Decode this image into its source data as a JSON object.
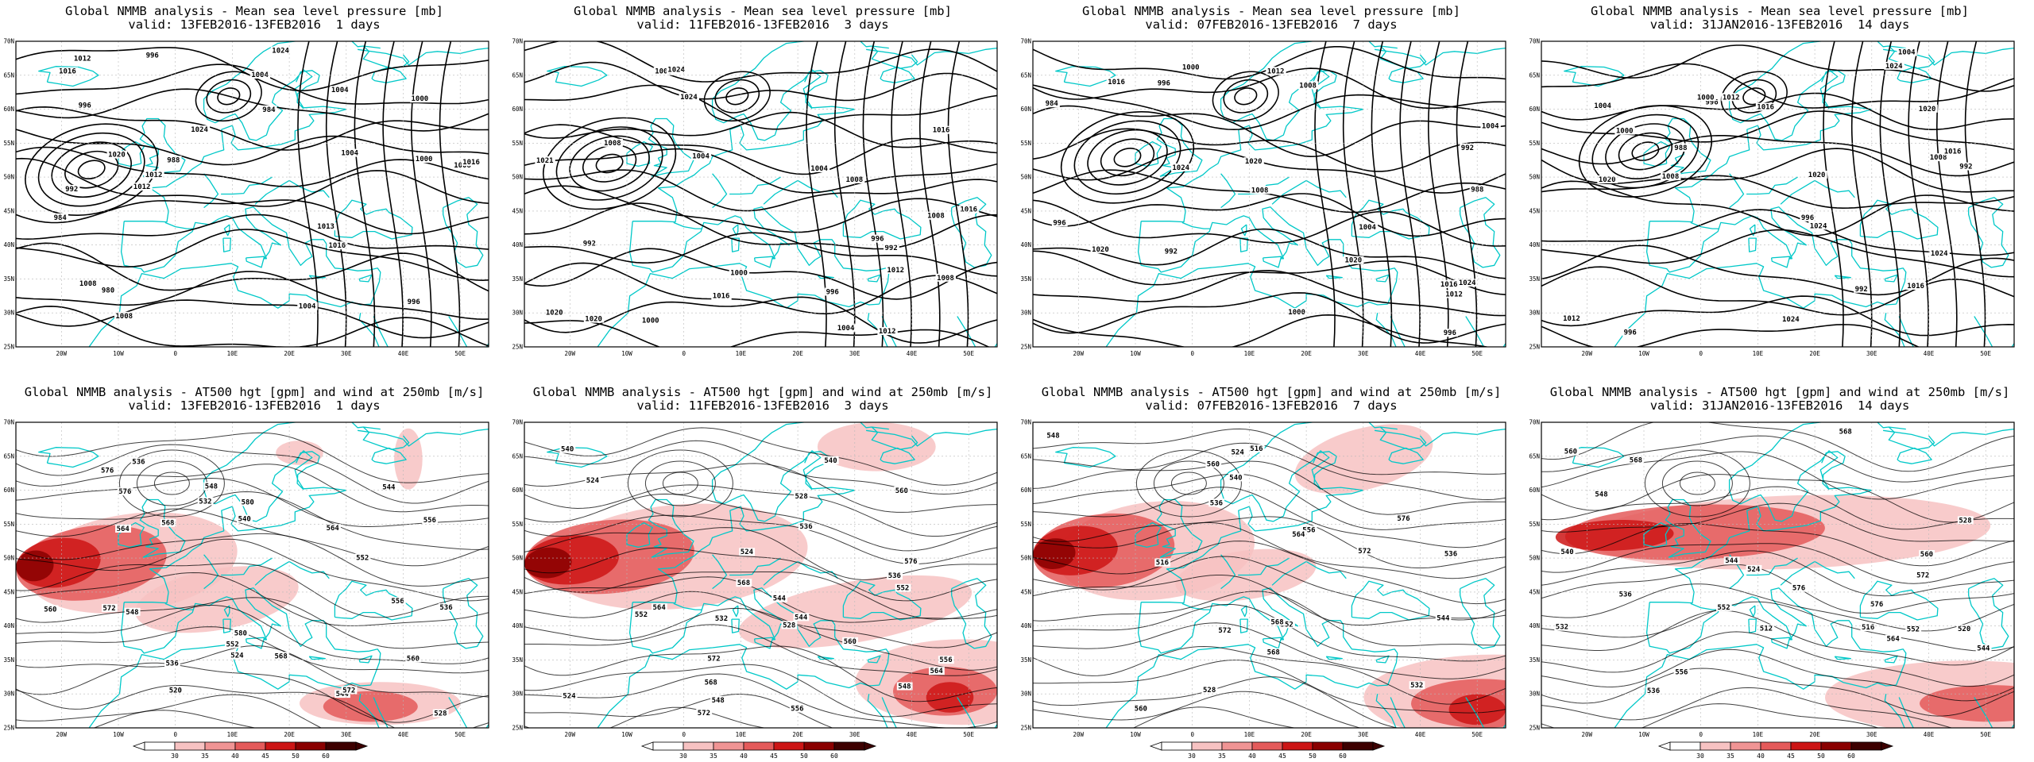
{
  "colors": {
    "background": "#ffffff",
    "coastline": "#00c8c8",
    "isobar": "#000000",
    "shading": [
      "#ffffff",
      "#f7c2c2",
      "#f09494",
      "#e45a5a",
      "#cc1515",
      "#8a0000",
      "#3d0000"
    ]
  },
  "axes": {
    "lat_labels": [
      "70N",
      "65N",
      "60N",
      "55N",
      "50N",
      "45N",
      "40N",
      "35N",
      "30N",
      "25N"
    ],
    "lon_labels": [
      "20W",
      "10W",
      "0",
      "10E",
      "20E",
      "30E",
      "40E",
      "50E"
    ]
  },
  "colorbar": {
    "ticks": [
      "30",
      "35",
      "40",
      "45",
      "50",
      "60"
    ]
  },
  "rows": [
    {
      "title": "Global NMMB analysis - Mean sea level pressure [mb]",
      "kind": "mslp",
      "panels": [
        {
          "valid": "valid: 13FEB2016-13FEB2016  1 days",
          "labels": [
            "1012",
            "1008",
            "1004",
            "1000",
            "1000",
            "1004",
            "996",
            "984",
            "980",
            "984",
            "988",
            "992",
            "996",
            "1004",
            "1012",
            "1016",
            "1013",
            "1008",
            "996",
            "1004",
            "1008",
            "1012",
            "1016",
            "1020",
            "1024",
            "1024",
            "1016"
          ]
        },
        {
          "valid": "valid: 11FEB2016-13FEB2016  3 days",
          "labels": [
            "1000",
            "996",
            "1004",
            "1008",
            "1000",
            "992",
            "992",
            "996",
            "1000",
            "1004",
            "1008",
            "1012",
            "1004",
            "1008",
            "1008",
            "1012",
            "1016",
            "1016",
            "1020",
            "1021",
            "1024",
            "1020",
            "1024",
            "1016"
          ]
        },
        {
          "valid": "valid: 07FEB2016-13FEB2016  7 days",
          "labels": [
            "992",
            "1000",
            "996",
            "996",
            "984",
            "988",
            "992",
            "996",
            "1000",
            "1004",
            "1004",
            "1008",
            "1012",
            "1016",
            "1008",
            "1012",
            "1016",
            "1020",
            "1020",
            "1024",
            "1020",
            "1024"
          ]
        },
        {
          "valid": "valid: 31JAN2016-13FEB2016  14 days",
          "labels": [
            "988",
            "996",
            "992",
            "992",
            "996",
            "1000",
            "1004",
            "1008",
            "1012",
            "1016",
            "1020",
            "996",
            "1000",
            "1004",
            "1008",
            "1012",
            "1016",
            "1016",
            "1020",
            "1020",
            "1024",
            "1024",
            "1024",
            "1024"
          ]
        }
      ]
    },
    {
      "title": "Global NMMB analysis - AT500 hgt [gpm] and wind at 250mb [m/s]",
      "kind": "z500",
      "panels": [
        {
          "valid": "valid: 13FEB2016-13FEB2016  1 days",
          "labels": [
            "524",
            "520",
            "528",
            "532",
            "536",
            "540",
            "544",
            "548",
            "552",
            "556",
            "560",
            "564",
            "568",
            "572",
            "576",
            "580",
            "536",
            "544",
            "548",
            "536",
            "552",
            "556",
            "560",
            "564",
            "568",
            "572",
            "576",
            "580"
          ]
        },
        {
          "valid": "valid: 11FEB2016-13FEB2016  3 days",
          "labels": [
            "524",
            "524",
            "528",
            "532",
            "536",
            "540",
            "544",
            "548",
            "552",
            "556",
            "560",
            "564",
            "568",
            "572",
            "576",
            "536",
            "540",
            "544",
            "548",
            "552",
            "556",
            "560",
            "564",
            "568",
            "572",
            "524",
            "528"
          ]
        },
        {
          "valid": "valid: 07FEB2016-13FEB2016  7 days",
          "labels": [
            "516",
            "536",
            "516",
            "524",
            "528",
            "532",
            "536",
            "540",
            "544",
            "548",
            "552",
            "556",
            "560",
            "564",
            "568",
            "572",
            "576",
            "560",
            "572",
            "568"
          ]
        },
        {
          "valid": "valid: 31JAN2016-13FEB2016  14 days",
          "labels": [
            "512",
            "516",
            "520",
            "524",
            "528",
            "532",
            "536",
            "540",
            "544",
            "548",
            "552",
            "556",
            "560",
            "564",
            "568",
            "572",
            "576",
            "536",
            "544",
            "552",
            "560",
            "568",
            "576"
          ]
        }
      ]
    }
  ]
}
